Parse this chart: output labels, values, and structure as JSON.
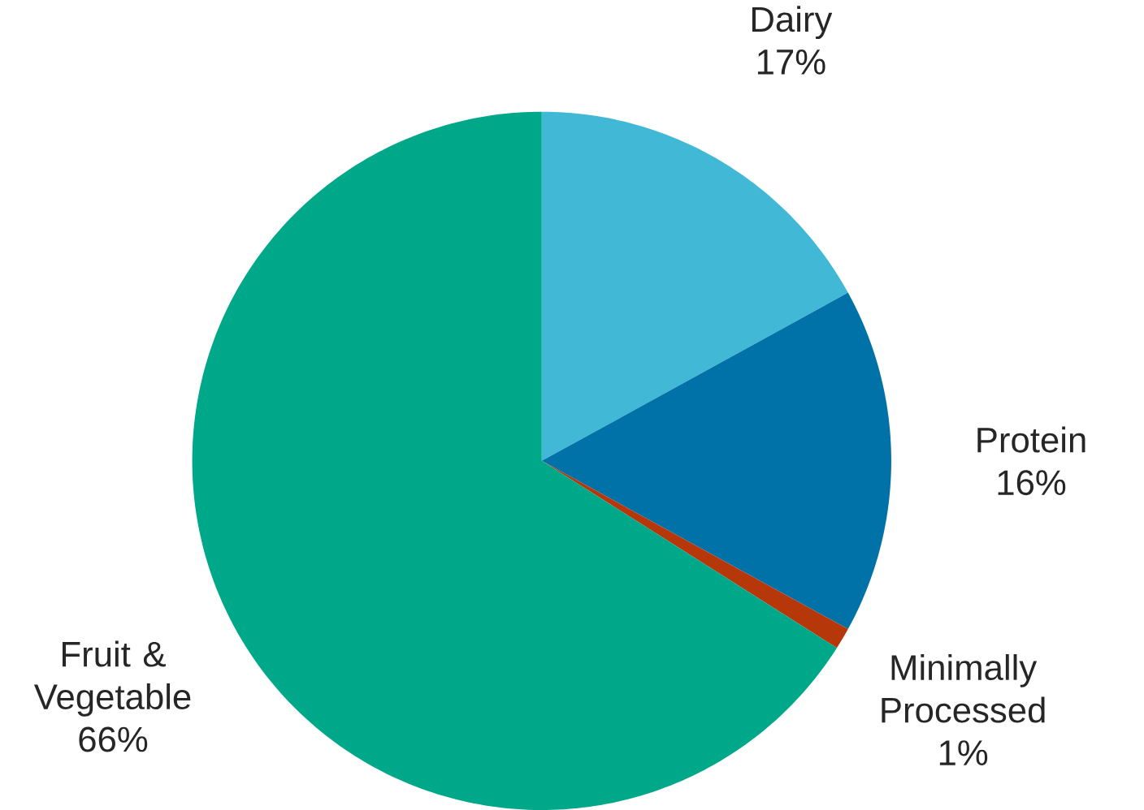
{
  "chart_data": {
    "type": "pie",
    "categories": [
      "Dairy",
      "Protein",
      "Minimally Processed",
      "Fruit & Vegetable"
    ],
    "values": [
      17,
      16,
      1,
      66
    ],
    "colors": [
      "#41b8d5",
      "#0072a8",
      "#b5370a",
      "#00a88a"
    ],
    "value_labels": [
      "17%",
      "16%",
      "1%",
      "66%"
    ]
  }
}
